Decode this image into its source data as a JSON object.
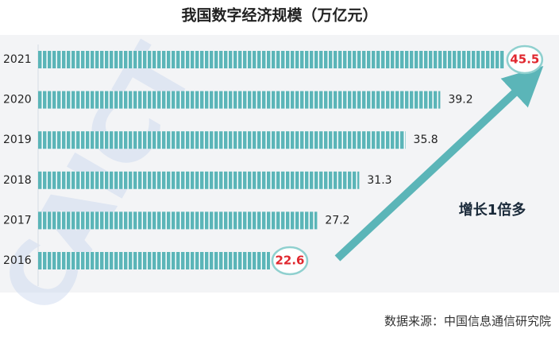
{
  "chart_data": {
    "type": "barh",
    "title": "我国数字经济规模（万亿元）",
    "categories": [
      "2021",
      "2020",
      "2019",
      "2018",
      "2017",
      "2016"
    ],
    "values": [
      45.5,
      39.2,
      35.8,
      31.3,
      27.2,
      22.6
    ],
    "color": "#5bb5b8",
    "annotation": "增长1倍多",
    "source": "数据来源：中国信息通信研究院",
    "watermark": "CAICT"
  }
}
